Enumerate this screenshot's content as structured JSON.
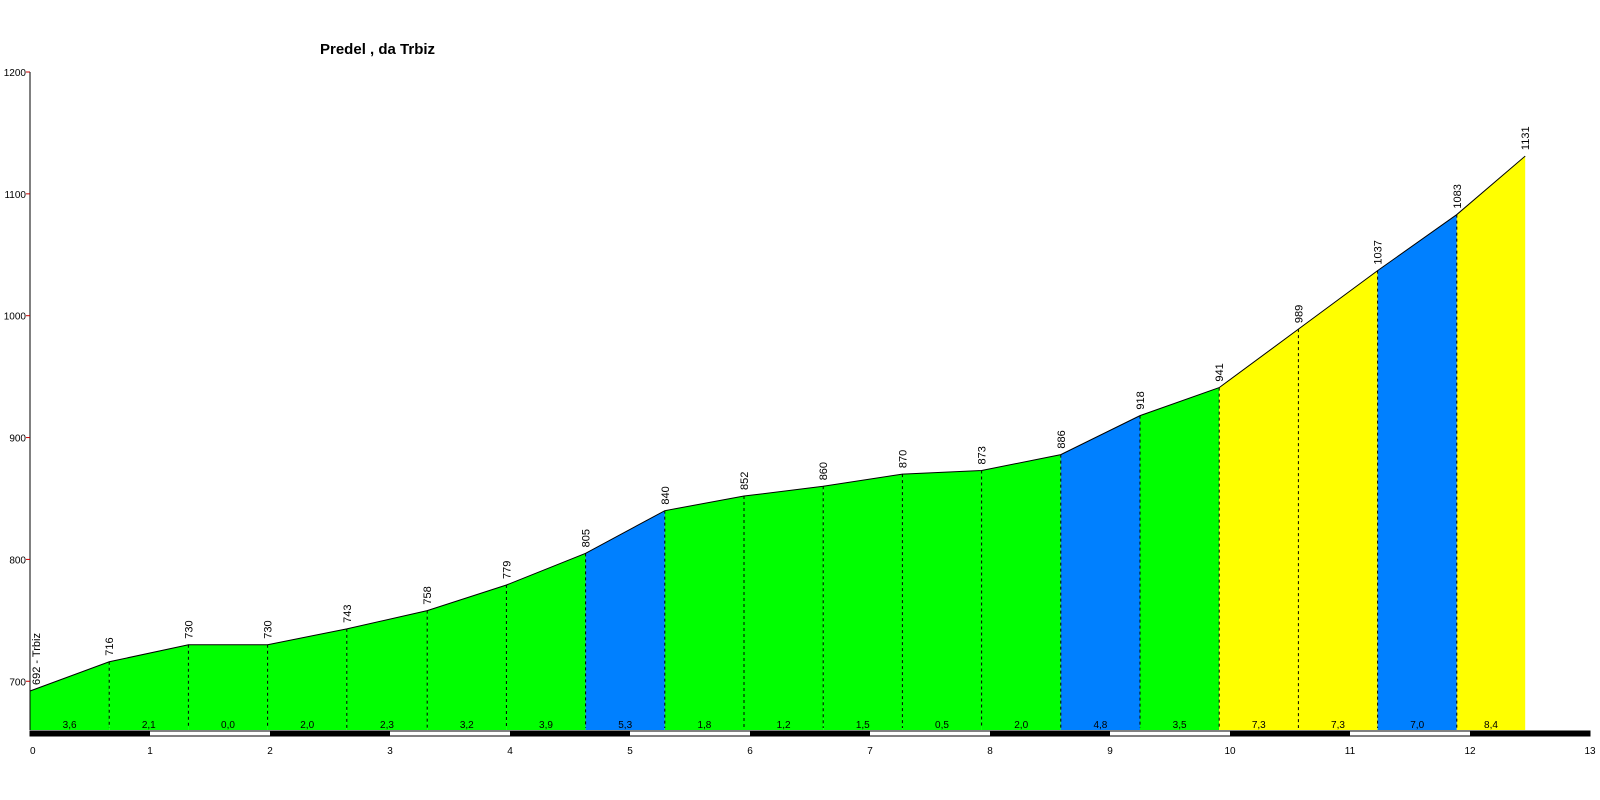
{
  "chart_data": {
    "type": "area",
    "title": "Predel , da Trbiz",
    "xlabel": "",
    "ylabel": "",
    "xlim": [
      0,
      13
    ],
    "ylim": [
      660,
      1200
    ],
    "x_ticks": [
      0,
      1,
      2,
      3,
      4,
      5,
      6,
      7,
      8,
      9,
      10,
      11,
      12,
      13
    ],
    "y_ticks": [
      700,
      800,
      900,
      1000,
      1100,
      1200
    ],
    "start_label": "692 - Trbiz",
    "points": [
      {
        "x": 0.0,
        "y": 692
      },
      {
        "x": 0.66,
        "y": 716
      },
      {
        "x": 1.32,
        "y": 730
      },
      {
        "x": 1.98,
        "y": 730
      },
      {
        "x": 2.64,
        "y": 743
      },
      {
        "x": 3.31,
        "y": 758
      },
      {
        "x": 3.97,
        "y": 779
      },
      {
        "x": 4.63,
        "y": 805
      },
      {
        "x": 5.29,
        "y": 840
      },
      {
        "x": 5.95,
        "y": 852
      },
      {
        "x": 6.61,
        "y": 860
      },
      {
        "x": 7.27,
        "y": 870
      },
      {
        "x": 7.93,
        "y": 873
      },
      {
        "x": 8.59,
        "y": 886
      },
      {
        "x": 9.25,
        "y": 918
      },
      {
        "x": 9.91,
        "y": 941
      },
      {
        "x": 10.57,
        "y": 989
      },
      {
        "x": 11.23,
        "y": 1037
      },
      {
        "x": 11.89,
        "y": 1083
      },
      {
        "x": 12.46,
        "y": 1131
      }
    ],
    "elevation_labels": [
      "692 - Trbiz",
      "716",
      "730",
      "730",
      "743",
      "758",
      "779",
      "805",
      "840",
      "852",
      "860",
      "870",
      "873",
      "886",
      "918",
      "941",
      "989",
      "1037",
      "1083",
      "1131"
    ],
    "gradients": [
      "3,6",
      "2,1",
      "0,0",
      "2,0",
      "2,3",
      "3,2",
      "3,9",
      "5,3",
      "1,8",
      "1,2",
      "1,5",
      "0,5",
      "2,0",
      "4,8",
      "3,5",
      "7,3",
      "7,3",
      "7,0",
      "8,4"
    ],
    "segment_colors": [
      "#00ff00",
      "#00ff00",
      "#00ff00",
      "#00ff00",
      "#00ff00",
      "#00ff00",
      "#00ff00",
      "#0080ff",
      "#00ff00",
      "#00ff00",
      "#00ff00",
      "#00ff00",
      "#00ff00",
      "#0080ff",
      "#00ff00",
      "#ffff00",
      "#ffff00",
      "#0080ff",
      "#ffff00"
    ],
    "colors": {
      "axis": "#000000",
      "y_tick": "#cc0000",
      "outline": "#000000",
      "scale_dark": "#000000",
      "scale_light": "#ffffff"
    }
  }
}
